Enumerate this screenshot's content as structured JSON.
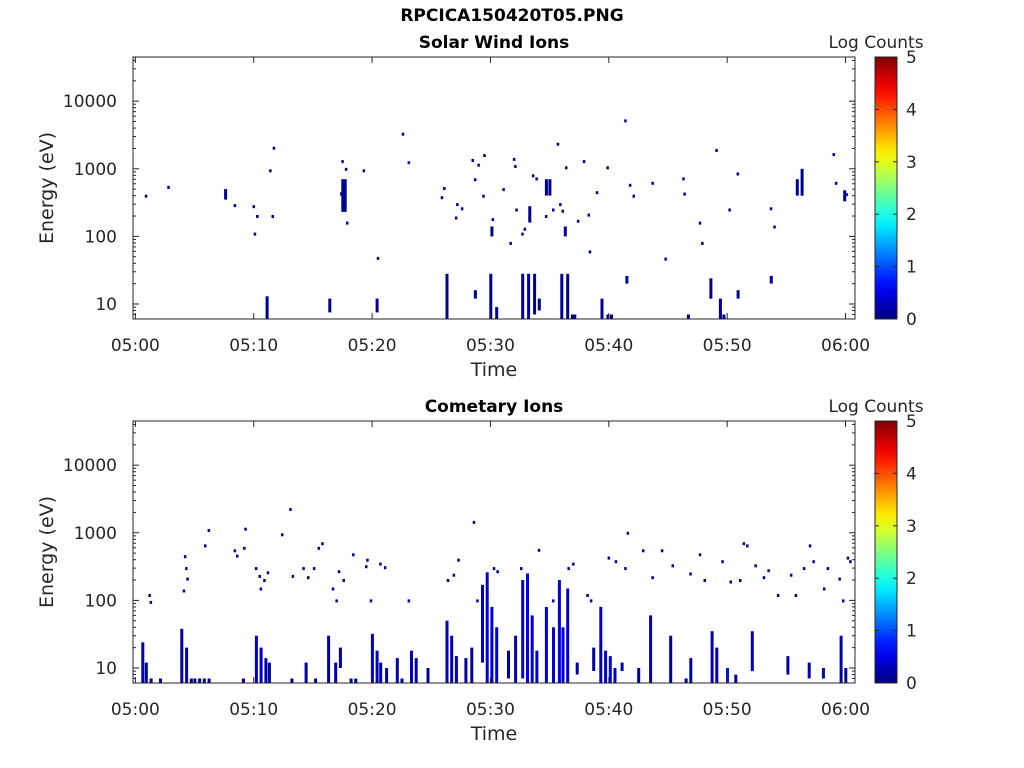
{
  "figure": {
    "title": "RPCICA150420T05.PNG"
  },
  "colorbar": {
    "label": "Log Counts",
    "ticks": [
      "0",
      "1",
      "2",
      "3",
      "4",
      "5"
    ],
    "min": 0,
    "max": 5
  },
  "chart_data": [
    {
      "type": "heatmap",
      "title": "Solar Wind Ions",
      "xlabel": "Time",
      "ylabel": "Energy (eV)",
      "xlim": [
        "05:00",
        "06:00"
      ],
      "xticks": [
        "05:00",
        "05:10",
        "05:20",
        "05:30",
        "05:40",
        "05:50",
        "06:00"
      ],
      "yscale": "log",
      "ylim": [
        6,
        45000
      ],
      "yticks": [
        "10",
        "100",
        "1000",
        "10000"
      ],
      "grid": false,
      "segments": [
        [
          11.0,
          6,
          13,
          0.1
        ],
        [
          16.3,
          7.5,
          12,
          0.1
        ],
        [
          20.3,
          7.5,
          12,
          0.1
        ],
        [
          26.2,
          6,
          28,
          0.1
        ],
        [
          28.6,
          12,
          16,
          0.1
        ],
        [
          29.9,
          6,
          28,
          0.1
        ],
        [
          30.4,
          6,
          9,
          0.1
        ],
        [
          32.6,
          6,
          28,
          0.15
        ],
        [
          33.1,
          6,
          28,
          0.15
        ],
        [
          33.6,
          7,
          28,
          0.1
        ],
        [
          34.0,
          8,
          12,
          0.1
        ],
        [
          35.9,
          6,
          28,
          0.1
        ],
        [
          36.4,
          6,
          28,
          0.1
        ],
        [
          36.8,
          6,
          7,
          0.1
        ],
        [
          37.0,
          6,
          7,
          0.1
        ],
        [
          39.3,
          6,
          12,
          0.1
        ],
        [
          39.8,
          6,
          7,
          0.1
        ],
        [
          40.1,
          6,
          7,
          0.1
        ],
        [
          41.4,
          20,
          26,
          0.1
        ],
        [
          46.6,
          6,
          7,
          0.1
        ],
        [
          48.5,
          12,
          24,
          0.1
        ],
        [
          49.3,
          6,
          12,
          0.1
        ],
        [
          49.6,
          6,
          7,
          0.1
        ],
        [
          50.8,
          12,
          16,
          0.1
        ],
        [
          53.6,
          20,
          26,
          0.1
        ],
        [
          17.4,
          230,
          700,
          0.1
        ],
        [
          17.6,
          230,
          700,
          0.1
        ],
        [
          17.3,
          400,
          450,
          0.1
        ],
        [
          7.5,
          350,
          500,
          0.1
        ],
        [
          34.6,
          400,
          700,
          0.1
        ],
        [
          34.9,
          400,
          700,
          0.1
        ],
        [
          55.8,
          400,
          700,
          0.1
        ],
        [
          56.2,
          400,
          1000,
          0.1
        ],
        [
          59.8,
          330,
          480,
          0.1
        ],
        [
          30.0,
          100,
          140,
          0.1
        ],
        [
          33.2,
          160,
          280,
          0.1
        ],
        [
          36.2,
          100,
          140,
          0.1
        ]
      ],
      "points": [
        [
          0.8,
          400
        ],
        [
          2.7,
          540
        ],
        [
          8.3,
          290
        ],
        [
          9.9,
          280
        ],
        [
          10.2,
          200
        ],
        [
          10.0,
          110
        ],
        [
          11.3,
          950
        ],
        [
          11.6,
          2050
        ],
        [
          11.5,
          200
        ],
        [
          17.8,
          160
        ],
        [
          17.4,
          1300
        ],
        [
          19.2,
          950
        ],
        [
          20.4,
          48
        ],
        [
          22.5,
          3300
        ],
        [
          23.0,
          1250
        ],
        [
          25.8,
          380
        ],
        [
          26.0,
          520
        ],
        [
          27.1,
          300
        ],
        [
          27.5,
          260
        ],
        [
          27.0,
          190
        ],
        [
          28.6,
          700
        ],
        [
          28.4,
          1350
        ],
        [
          28.9,
          1150
        ],
        [
          29.4,
          1600
        ],
        [
          29.3,
          400
        ],
        [
          30.1,
          180
        ],
        [
          31.0,
          500
        ],
        [
          31.6,
          80
        ],
        [
          31.9,
          1400
        ],
        [
          32.0,
          1100
        ],
        [
          32.1,
          250
        ],
        [
          32.6,
          110
        ],
        [
          33.2,
          190
        ],
        [
          33.8,
          720
        ],
        [
          34.6,
          200
        ],
        [
          35.2,
          250
        ],
        [
          35.6,
          2350
        ],
        [
          35.8,
          300
        ],
        [
          36.3,
          1050
        ],
        [
          36.0,
          240
        ],
        [
          37.3,
          170
        ],
        [
          37.8,
          1300
        ],
        [
          38.2,
          210
        ],
        [
          38.3,
          60
        ],
        [
          38.9,
          450
        ],
        [
          41.3,
          5200
        ],
        [
          41.7,
          580
        ],
        [
          42.0,
          400
        ],
        [
          43.6,
          620
        ],
        [
          44.7,
          47
        ],
        [
          46.2,
          720
        ],
        [
          46.3,
          430
        ],
        [
          47.6,
          160
        ],
        [
          47.8,
          80
        ],
        [
          49.0,
          1900
        ],
        [
          50.1,
          250
        ],
        [
          50.8,
          850
        ],
        [
          53.6,
          260
        ],
        [
          53.9,
          140
        ],
        [
          58.9,
          1650
        ],
        [
          59.1,
          620
        ],
        [
          60.0,
          420
        ],
        [
          17.7,
          1000
        ],
        [
          32.8,
          130
        ],
        [
          33.5,
          800
        ],
        [
          39.8,
          1050
        ]
      ]
    },
    {
      "type": "heatmap",
      "title": "Cometary Ions",
      "xlabel": "Time",
      "ylabel": "Energy (eV)",
      "xlim": [
        "05:00",
        "06:00"
      ],
      "xticks": [
        "05:00",
        "05:10",
        "05:20",
        "05:30",
        "05:40",
        "05:50",
        "06:00"
      ],
      "yscale": "log",
      "ylim": [
        6,
        45000
      ],
      "yticks": [
        "10",
        "100",
        "1000",
        "10000"
      ],
      "grid": false,
      "segments": [
        [
          0.5,
          6,
          24,
          0.3
        ],
        [
          0.8,
          6,
          12,
          0.2
        ],
        [
          1.2,
          6,
          7,
          0.1
        ],
        [
          2.0,
          6,
          7,
          0.1
        ],
        [
          3.8,
          6,
          38,
          0.2
        ],
        [
          4.2,
          6,
          20,
          0.3
        ],
        [
          4.6,
          6,
          7,
          0.1
        ],
        [
          4.9,
          6,
          7,
          0.1
        ],
        [
          5.3,
          6,
          7,
          0.1
        ],
        [
          5.7,
          6,
          7,
          0.1
        ],
        [
          6.1,
          6,
          7,
          0.1
        ],
        [
          9.0,
          6,
          7,
          0.1
        ],
        [
          10.1,
          6,
          30,
          0.3
        ],
        [
          10.5,
          6,
          20,
          0.3
        ],
        [
          10.9,
          6,
          14,
          0.2
        ],
        [
          11.2,
          6,
          12,
          0.2
        ],
        [
          13.1,
          6,
          7,
          0.1
        ],
        [
          14.3,
          6,
          12,
          0.2
        ],
        [
          15.1,
          6,
          7,
          0.1
        ],
        [
          16.2,
          6,
          30,
          0.2
        ],
        [
          16.8,
          6,
          12,
          0.2
        ],
        [
          17.2,
          10,
          20,
          0.2
        ],
        [
          18.1,
          6,
          7,
          0.1
        ],
        [
          18.5,
          6,
          7,
          0.1
        ],
        [
          19.9,
          6,
          32,
          0.3
        ],
        [
          20.3,
          6,
          18,
          0.3
        ],
        [
          20.6,
          6,
          12,
          0.2
        ],
        [
          21.1,
          6,
          10,
          0.2
        ],
        [
          22.0,
          6,
          14,
          0.2
        ],
        [
          22.4,
          6,
          7,
          0.1
        ],
        [
          23.2,
          6,
          18,
          0.3
        ],
        [
          23.6,
          6,
          14,
          0.2
        ],
        [
          24.6,
          6,
          10,
          0.2
        ],
        [
          26.2,
          6,
          50,
          0.3
        ],
        [
          26.6,
          6,
          30,
          0.3
        ],
        [
          27.0,
          6,
          15,
          0.3
        ],
        [
          27.8,
          6,
          14,
          0.2
        ],
        [
          28.3,
          6,
          20,
          0.2
        ],
        [
          29.2,
          12,
          170,
          0.3
        ],
        [
          29.6,
          6,
          260,
          0.4
        ],
        [
          30.0,
          6,
          80,
          0.5
        ],
        [
          30.4,
          6,
          40,
          0.4
        ],
        [
          31.4,
          7,
          18,
          0.2
        ],
        [
          32.0,
          6,
          30,
          0.3
        ],
        [
          32.6,
          7,
          200,
          0.4
        ],
        [
          33.0,
          6,
          250,
          0.5
        ],
        [
          33.4,
          6,
          60,
          0.5
        ],
        [
          33.8,
          6,
          18,
          0.3
        ],
        [
          34.6,
          6,
          80,
          0.4
        ],
        [
          35.2,
          6,
          40,
          0.4
        ],
        [
          35.7,
          6,
          200,
          0.5
        ],
        [
          36.0,
          6,
          40,
          0.5
        ],
        [
          36.4,
          6,
          150,
          0.4
        ],
        [
          37.2,
          8,
          12,
          0.2
        ],
        [
          38.6,
          9,
          20,
          0.2
        ],
        [
          39.2,
          6,
          80,
          0.3
        ],
        [
          39.6,
          6,
          18,
          0.4
        ],
        [
          40.0,
          6,
          15,
          0.5
        ],
        [
          40.4,
          6,
          10,
          0.3
        ],
        [
          41.0,
          9,
          12,
          0.2
        ],
        [
          42.4,
          6,
          10,
          0.2
        ],
        [
          43.4,
          6,
          60,
          0.2
        ],
        [
          45.1,
          6,
          30,
          0.2
        ],
        [
          46.4,
          6,
          7,
          0.1
        ],
        [
          46.8,
          6,
          14,
          0.2
        ],
        [
          48.6,
          6,
          35,
          0.3
        ],
        [
          49.0,
          6,
          20,
          0.2
        ],
        [
          49.9,
          6,
          10,
          0.7
        ],
        [
          50.6,
          6,
          8,
          0.2
        ],
        [
          52.0,
          9,
          35,
          0.3
        ],
        [
          55.0,
          8,
          15,
          0.2
        ],
        [
          56.8,
          7,
          12,
          0.2
        ],
        [
          58.0,
          7,
          10,
          0.2
        ],
        [
          59.5,
          6,
          30,
          0.2
        ],
        [
          59.9,
          6,
          10,
          0.2
        ]
      ],
      "points": [
        [
          1.1,
          120
        ],
        [
          1.2,
          95
        ],
        [
          4.1,
          450
        ],
        [
          4.2,
          300
        ],
        [
          4.3,
          210
        ],
        [
          4.0,
          140
        ],
        [
          5.8,
          650
        ],
        [
          6.1,
          1100
        ],
        [
          8.3,
          550
        ],
        [
          8.5,
          460
        ],
        [
          9.1,
          600
        ],
        [
          9.2,
          1150
        ],
        [
          10.1,
          300
        ],
        [
          10.4,
          230
        ],
        [
          10.8,
          200
        ],
        [
          11.1,
          260
        ],
        [
          10.5,
          150
        ],
        [
          12.3,
          950
        ],
        [
          13.0,
          2250
        ],
        [
          14.1,
          300
        ],
        [
          14.5,
          220
        ],
        [
          15.0,
          300
        ],
        [
          15.4,
          600
        ],
        [
          15.7,
          700
        ],
        [
          16.6,
          150
        ],
        [
          16.9,
          100
        ],
        [
          17.1,
          270
        ],
        [
          17.5,
          200
        ],
        [
          18.3,
          480
        ],
        [
          19.4,
          320
        ],
        [
          19.8,
          100
        ],
        [
          20.6,
          350
        ],
        [
          21.0,
          310
        ],
        [
          23.0,
          100
        ],
        [
          26.3,
          200
        ],
        [
          26.8,
          240
        ],
        [
          27.2,
          400
        ],
        [
          28.5,
          1450
        ],
        [
          28.8,
          100
        ],
        [
          30.2,
          300
        ],
        [
          30.5,
          270
        ],
        [
          32.5,
          300
        ],
        [
          34.0,
          560
        ],
        [
          35.2,
          100
        ],
        [
          36.5,
          300
        ],
        [
          36.9,
          350
        ],
        [
          38.1,
          120
        ],
        [
          38.4,
          100
        ],
        [
          39.9,
          430
        ],
        [
          40.5,
          380
        ],
        [
          41.3,
          300
        ],
        [
          41.5,
          1000
        ],
        [
          42.8,
          550
        ],
        [
          43.6,
          220
        ],
        [
          44.4,
          550
        ],
        [
          45.3,
          330
        ],
        [
          46.8,
          250
        ],
        [
          47.6,
          480
        ],
        [
          48.0,
          200
        ],
        [
          49.5,
          380
        ],
        [
          50.2,
          190
        ],
        [
          51.3,
          700
        ],
        [
          51.6,
          650
        ],
        [
          52.3,
          330
        ],
        [
          53.0,
          220
        ],
        [
          53.4,
          280
        ],
        [
          54.2,
          120
        ],
        [
          55.3,
          240
        ],
        [
          56.4,
          300
        ],
        [
          56.9,
          650
        ],
        [
          57.2,
          380
        ],
        [
          58.1,
          150
        ],
        [
          58.4,
          300
        ],
        [
          59.4,
          210
        ],
        [
          59.7,
          100
        ],
        [
          60.1,
          430
        ],
        [
          60.3,
          380
        ],
        [
          13.2,
          230
        ],
        [
          19.5,
          400
        ],
        [
          51.0,
          200
        ],
        [
          55.7,
          120
        ]
      ]
    }
  ]
}
